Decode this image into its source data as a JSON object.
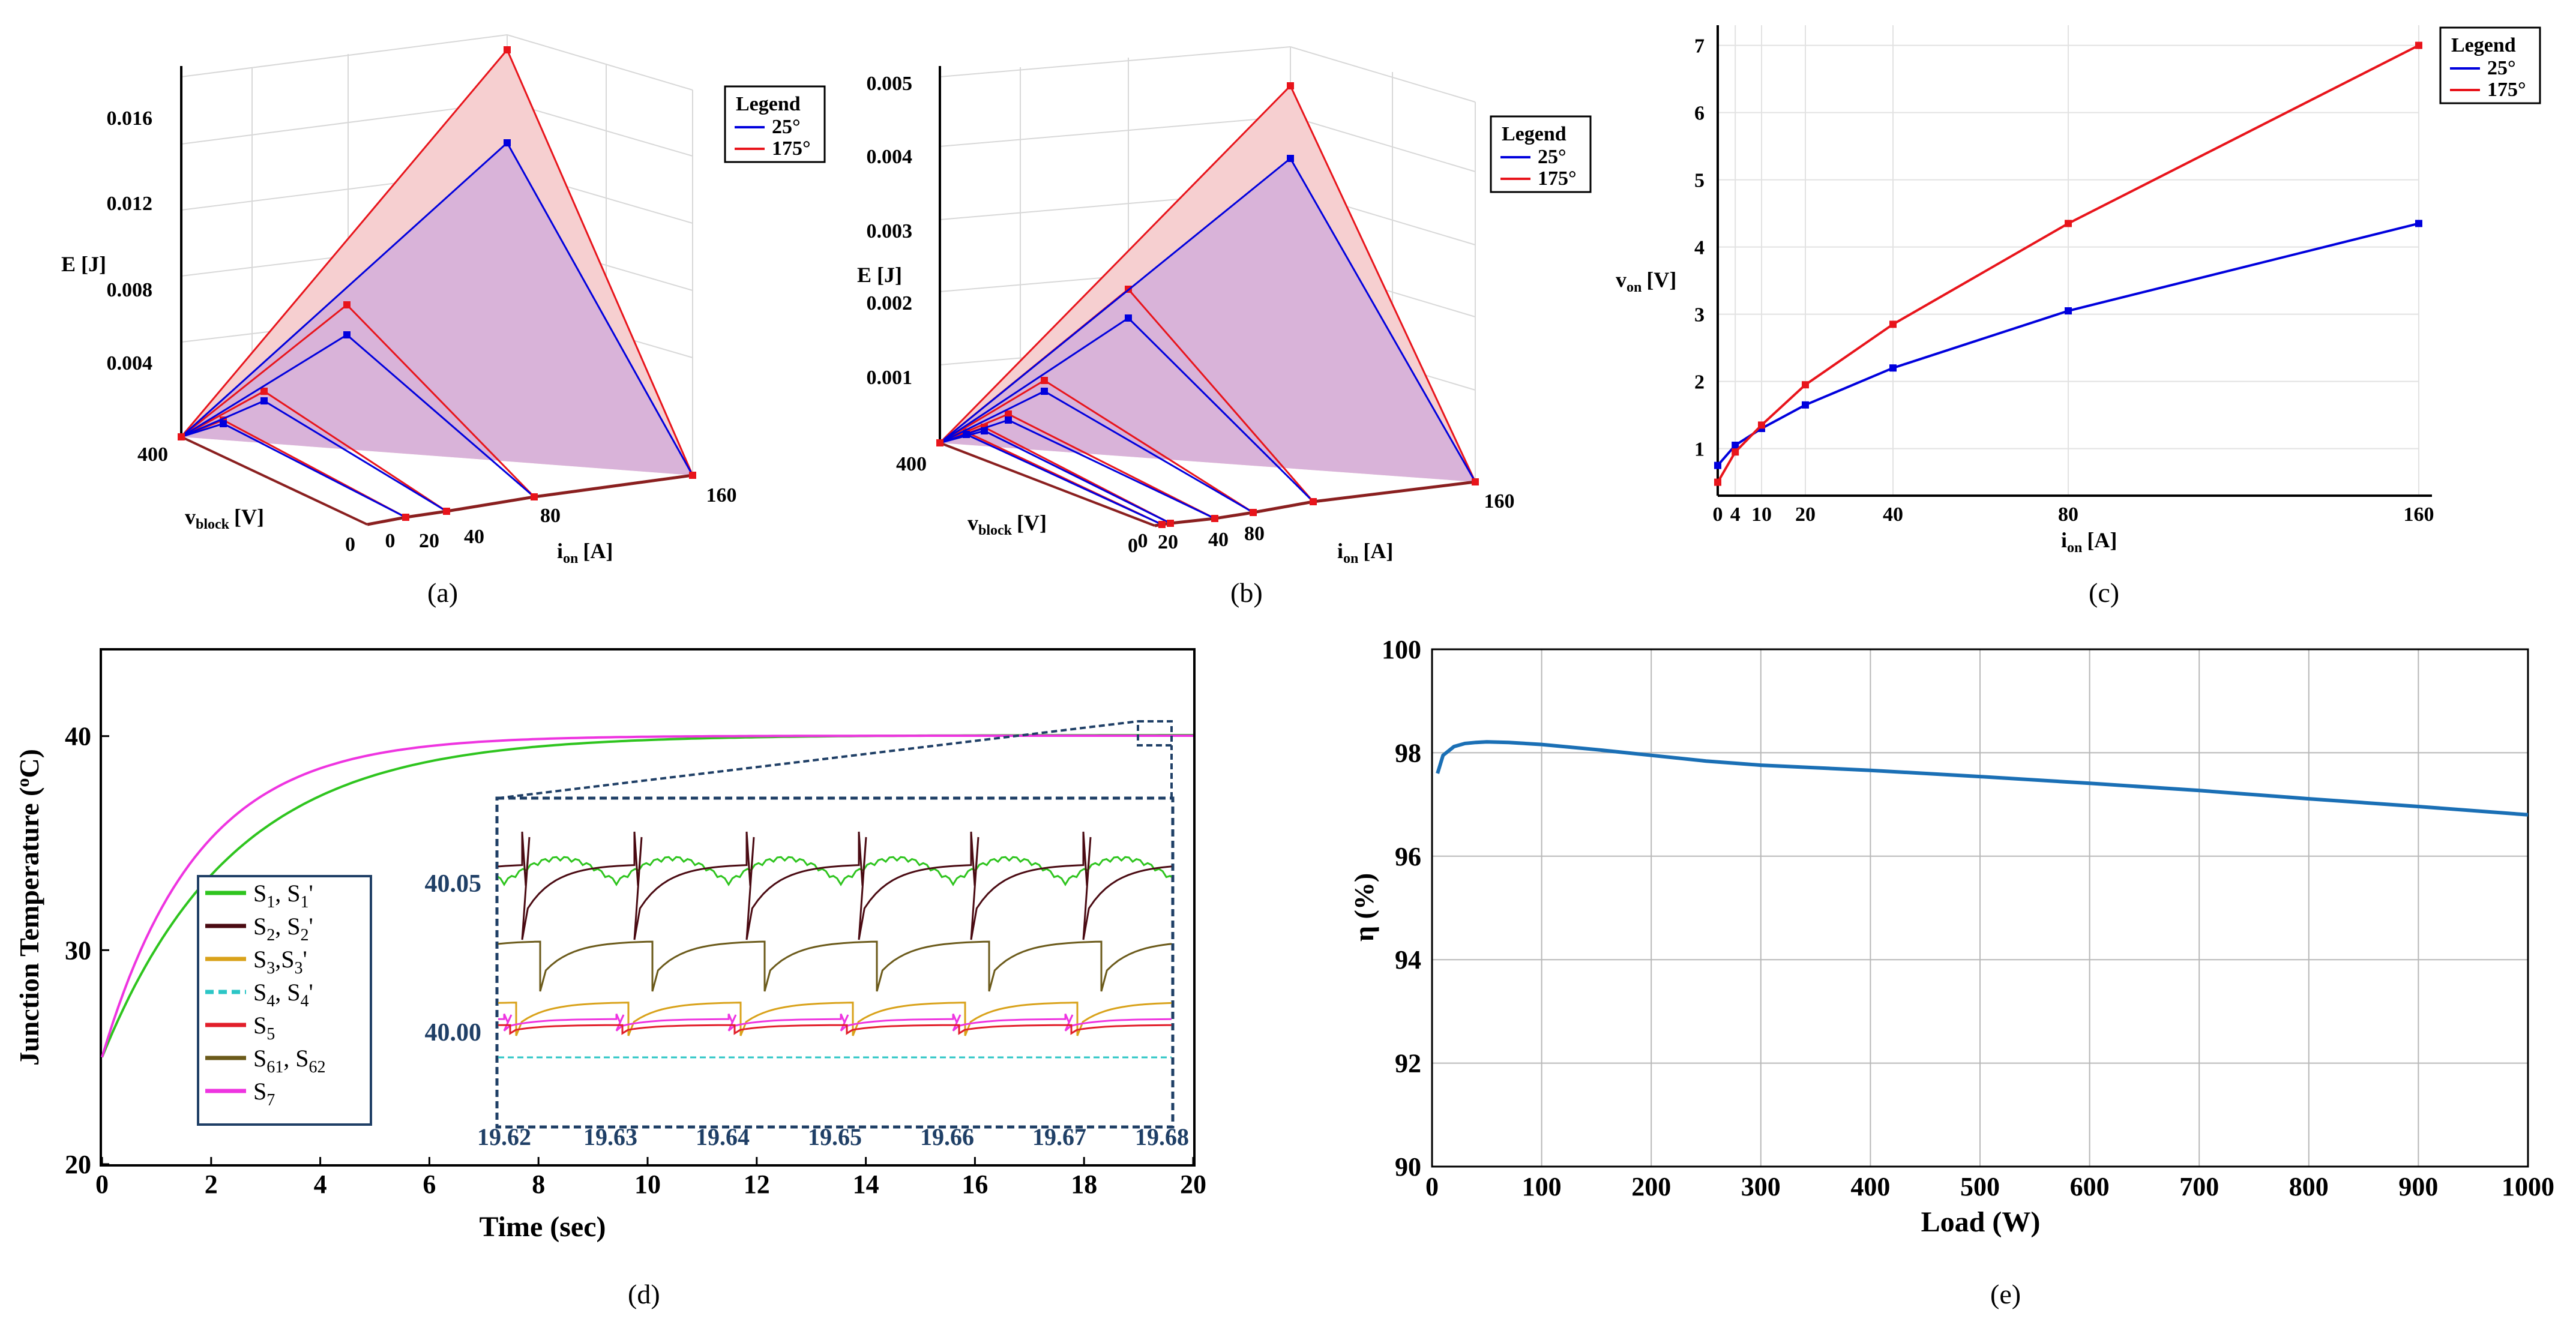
{
  "panels": {
    "a": {
      "caption": "(a)"
    },
    "b": {
      "caption": "(b)"
    },
    "c": {
      "caption": "(c)"
    },
    "d": {
      "caption": "(d)"
    },
    "e": {
      "caption": "(e)"
    }
  },
  "colors": {
    "c25": "#0000dd",
    "c175": "#e8141b",
    "fill175": "#f6cfd0",
    "fill25": "#d9b3d9",
    "edge": "#8a1f1f"
  },
  "chart_data": [
    {
      "id": "a",
      "type": "surface3d",
      "title": "",
      "zlabel": "E [J]",
      "xlabel": "i",
      "xlabel_sub": "on",
      "xlabel_unit": "[A]",
      "ylabel": "v",
      "ylabel_sub": "block",
      "ylabel_unit": "[V]",
      "z_ticks": [
        "0.016",
        "0.012",
        "0.008",
        "0.004"
      ],
      "i_ticks": [
        "0",
        "20",
        "40",
        "80",
        "160"
      ],
      "v_ticks": [
        "400",
        "0"
      ],
      "legend": {
        "title": "Legend",
        "entries": [
          "25°",
          "175°"
        ]
      },
      "current_points": [
        0,
        20,
        40,
        80,
        160
      ],
      "series": [
        {
          "name": "25°",
          "peak_at_400V": [
            0,
            0.0006,
            0.0012,
            0.0038,
            0.0148
          ]
        },
        {
          "name": "175°",
          "peak_at_400V": [
            0,
            0.0008,
            0.0016,
            0.0048,
            0.0188
          ]
        }
      ]
    },
    {
      "id": "b",
      "type": "surface3d",
      "zlabel": "E [J]",
      "xlabel": "i",
      "xlabel_sub": "on",
      "xlabel_unit": "[A]",
      "ylabel": "v",
      "ylabel_sub": "block",
      "ylabel_unit": "[V]",
      "z_ticks": [
        "0.005",
        "0.004",
        "0.003",
        "0.002",
        "0.001"
      ],
      "i_ticks": [
        "0",
        "20",
        "40",
        "80",
        "160"
      ],
      "v_ticks": [
        "400",
        "0"
      ],
      "legend": {
        "title": "Legend",
        "entries": [
          "25°",
          "175°"
        ]
      },
      "current_points": [
        0,
        4,
        10,
        20,
        40,
        80,
        160
      ],
      "series": [
        {
          "name": "25°",
          "peak_at_400V": [
            0,
            0.0001,
            0.0002,
            0.0004,
            0.001,
            0.0022,
            0.0043
          ]
        },
        {
          "name": "175°",
          "peak_at_400V": [
            0,
            0.00013,
            0.00025,
            0.0005,
            0.0013,
            0.0028,
            0.0051
          ]
        }
      ]
    },
    {
      "id": "c",
      "type": "line",
      "xlabel": "i",
      "xlabel_sub": "on",
      "xlabel_unit": "[A]",
      "ylabel": "v",
      "ylabel_sub": "on",
      "ylabel_unit": "[V]",
      "x_ticks": [
        "0",
        "4",
        "10",
        "20",
        "40",
        "80",
        "160"
      ],
      "y_ticks": [
        "1",
        "2",
        "3",
        "4",
        "5",
        "6",
        "7"
      ],
      "xlim": [
        0,
        160
      ],
      "ylim": [
        0,
        7.2
      ],
      "legend": {
        "title": "Legend",
        "entries": [
          "25°",
          "175°"
        ]
      },
      "x": [
        0,
        4,
        10,
        20,
        40,
        80,
        160
      ],
      "series": [
        {
          "name": "25°",
          "values": [
            0.75,
            1.05,
            1.3,
            1.65,
            2.2,
            3.05,
            4.35
          ]
        },
        {
          "name": "175°",
          "values": [
            0.5,
            0.95,
            1.35,
            1.95,
            2.85,
            4.35,
            7.0
          ]
        }
      ]
    },
    {
      "id": "d",
      "type": "line",
      "xlabel": "Time (sec)",
      "ylabel": "Junction Temperature (",
      "ylabel_sup": "o",
      "ylabel_end": "C)",
      "x_ticks": [
        "0",
        "2",
        "4",
        "6",
        "8",
        "10",
        "12",
        "14",
        "16",
        "18",
        "20"
      ],
      "y_ticks": [
        "20",
        "30",
        "40"
      ],
      "xlim": [
        0,
        20
      ],
      "ylim": [
        20,
        44
      ],
      "series": [
        {
          "name": "S1, S1'",
          "tau": 2.4,
          "start": 25,
          "final": 40.05
        },
        {
          "name": "S7",
          "tau": 1.75,
          "start": 25,
          "final": 40.02
        }
      ],
      "legend": [
        {
          "main": "S",
          "sub": "1",
          "tail": ", S",
          "sub2": "1",
          "end": "'",
          "color": "#2ec41e",
          "dash": false
        },
        {
          "main": "S",
          "sub": "2",
          "tail": ", S",
          "sub2": "2",
          "end": "'",
          "color": "#4a0a12",
          "dash": false
        },
        {
          "main": "S",
          "sub": "3",
          "tail": ",S",
          "sub2": "3",
          "end": "'",
          "color": "#d9a21a",
          "dash": false
        },
        {
          "main": "S",
          "sub": "4",
          "tail": ", S",
          "sub2": "4",
          "end": "'",
          "color": "#2cc6c6",
          "dash": true
        },
        {
          "main": "S",
          "sub": "5",
          "tail": "",
          "sub2": "",
          "end": "",
          "color": "#e21e2a",
          "dash": false
        },
        {
          "main": "S",
          "sub": "61",
          "tail": ", S",
          "sub2": "62",
          "end": "",
          "color": "#6b5a1a",
          "dash": false
        },
        {
          "main": "S",
          "sub": "7",
          "tail": "",
          "sub2": "",
          "end": "",
          "color": "#ee34e0",
          "dash": false
        }
      ],
      "inset": {
        "x_ticks": [
          "19.62",
          "19.63",
          "19.64",
          "19.65",
          "19.66",
          "19.67",
          "19.68"
        ],
        "y_ticks": [
          "40.05",
          "40.00"
        ]
      }
    },
    {
      "id": "e",
      "type": "line",
      "xlabel": "Load (W)",
      "ylabel": "η (%)",
      "x_ticks": [
        "0",
        "100",
        "200",
        "300",
        "400",
        "500",
        "600",
        "700",
        "800",
        "900",
        "1000"
      ],
      "y_ticks": [
        "100",
        "98",
        "96",
        "94",
        "92",
        "90"
      ],
      "xlim": [
        0,
        1000
      ],
      "ylim": [
        90,
        100
      ],
      "series": [
        {
          "name": "efficiency",
          "x": [
            5,
            10,
            20,
            30,
            40,
            50,
            70,
            100,
            150,
            200,
            250,
            300,
            400,
            500,
            600,
            700,
            800,
            900,
            1000
          ],
          "values": [
            97.6,
            97.95,
            98.12,
            98.18,
            98.2,
            98.21,
            98.2,
            98.16,
            98.06,
            97.95,
            97.84,
            97.76,
            97.66,
            97.54,
            97.41,
            97.27,
            97.11,
            96.96,
            96.8
          ]
        }
      ]
    }
  ]
}
